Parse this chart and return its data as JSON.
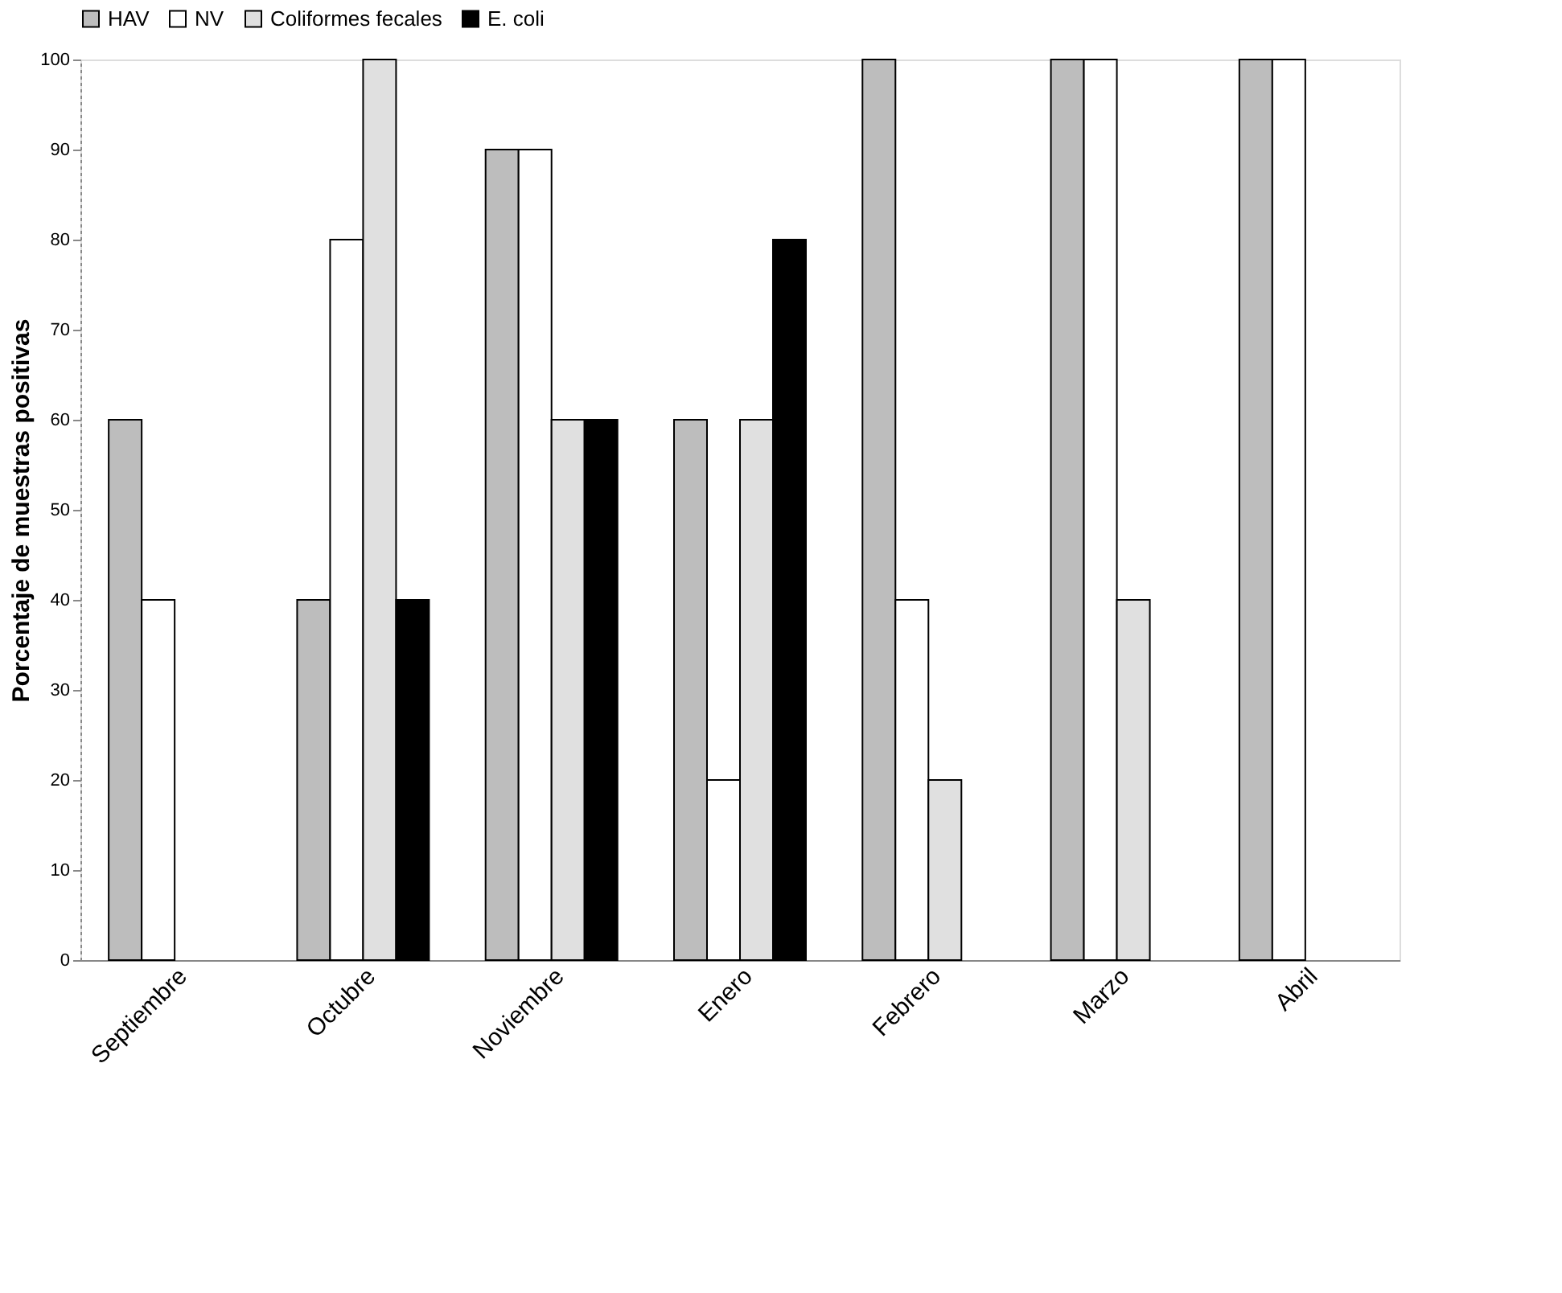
{
  "chart_data": {
    "type": "bar",
    "ylabel": "Porcentaje de muestras positivas",
    "categories": [
      "Septiembre",
      "Octubre",
      "Noviembre",
      "Enero",
      "Febrero",
      "Marzo",
      "Abril"
    ],
    "ylim": [
      0,
      100
    ],
    "yticks": [
      0,
      10,
      20,
      30,
      40,
      50,
      60,
      70,
      80,
      90,
      100
    ],
    "grid": false,
    "legend": "top",
    "series": [
      {
        "name": "HAV",
        "color": "#bdbdbd",
        "values": [
          60,
          40,
          90,
          60,
          100,
          100,
          100
        ]
      },
      {
        "name": "NV",
        "color": "#ffffff",
        "values": [
          40,
          80,
          90,
          20,
          40,
          100,
          100
        ]
      },
      {
        "name": "Coliformes fecales",
        "color": "#e0e0e0",
        "values": [
          null,
          100,
          60,
          60,
          20,
          40,
          null
        ]
      },
      {
        "name": "E. coli",
        "color": "#000000",
        "values": [
          null,
          40,
          60,
          80,
          null,
          null,
          null
        ]
      }
    ]
  }
}
